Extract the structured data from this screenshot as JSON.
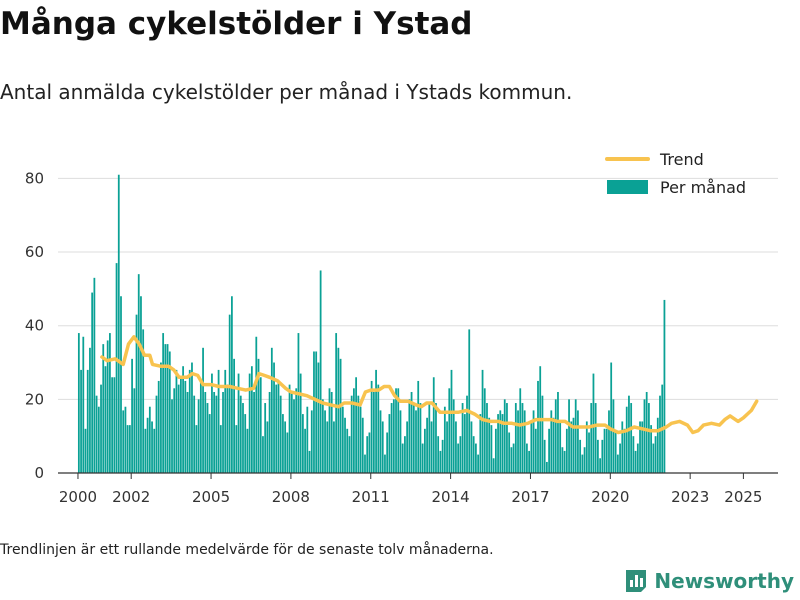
{
  "header": {
    "title": "Många cykelstölder i Ystad",
    "subtitle": "Antal anmälda cykelstölder per månad i Ystads kommun."
  },
  "footer": {
    "note": "Trendlinjen är ett rullande medelvärde för de senaste tolv månaderna.",
    "brand": "Newsworthy"
  },
  "colors": {
    "bars": "#0aa195",
    "trend": "#f8c34f",
    "grid": "#dddddd",
    "axis": "#333333",
    "brand": "#2f8f7a"
  },
  "icons": {
    "brand": "bar-chart-icon"
  },
  "chart_data": {
    "type": "bar",
    "x_axis": {
      "min": 1999.25,
      "max": 2026.3,
      "ticks": [
        2000,
        2002,
        2005,
        2008,
        2011,
        2014,
        2017,
        2020,
        2023,
        2025
      ]
    },
    "y_axis": {
      "min": 0,
      "max": 85,
      "ticks": [
        0,
        20,
        40,
        60,
        80
      ]
    },
    "grid": true,
    "legend": {
      "position": "top-right"
    },
    "series": [
      {
        "name": "Per månad",
        "kind": "bar",
        "start": "2000-01",
        "values": [
          38,
          28,
          37,
          12,
          28,
          34,
          49,
          53,
          21,
          18,
          24,
          35,
          29,
          36,
          38,
          26,
          26,
          57,
          81,
          48,
          17,
          18,
          13,
          13,
          31,
          23,
          43,
          54,
          48,
          39,
          12,
          15,
          18,
          14,
          12,
          21,
          25,
          30,
          38,
          35,
          35,
          33,
          20,
          23,
          28,
          24,
          26,
          29,
          25,
          22,
          28,
          30,
          21,
          13,
          20,
          25,
          34,
          22,
          19,
          16,
          27,
          22,
          21,
          28,
          13,
          22,
          28,
          24,
          43,
          48,
          31,
          13,
          27,
          21,
          19,
          16,
          12,
          27,
          29,
          22,
          37,
          31,
          26,
          10,
          19,
          14,
          22,
          34,
          30,
          24,
          25,
          21,
          16,
          14,
          11,
          24,
          22,
          20,
          23,
          38,
          27,
          16,
          12,
          18,
          6,
          17,
          33,
          33,
          30,
          55,
          20,
          17,
          14,
          23,
          22,
          14,
          38,
          34,
          31,
          18,
          15,
          12,
          10,
          21,
          23,
          26,
          21,
          18,
          15,
          5,
          10,
          11,
          25,
          22,
          28,
          24,
          17,
          14,
          5,
          11,
          16,
          19,
          20,
          23,
          23,
          17,
          8,
          10,
          14,
          20,
          22,
          19,
          17,
          25,
          19,
          8,
          12,
          15,
          19,
          14,
          26,
          19,
          10,
          6,
          9,
          18,
          14,
          23,
          28,
          20,
          14,
          8,
          10,
          19,
          16,
          21,
          39,
          14,
          10,
          8,
          5,
          16,
          28,
          23,
          19,
          15,
          13,
          4,
          12,
          16,
          17,
          16,
          20,
          19,
          11,
          7,
          8,
          19,
          17,
          23,
          19,
          17,
          8,
          6,
          14,
          17,
          12,
          25,
          29,
          21,
          9,
          3,
          12,
          17,
          15,
          20,
          22,
          14,
          7,
          6,
          12,
          20,
          14,
          15,
          20,
          17,
          9,
          5,
          7,
          14,
          11,
          19,
          27,
          19,
          9,
          4,
          9,
          12,
          12,
          17,
          30,
          20,
          11,
          5,
          8,
          14,
          12,
          18,
          21,
          19,
          10,
          6,
          8,
          14,
          14,
          20,
          22,
          19,
          13,
          8,
          10,
          15,
          21,
          24,
          47
        ]
      },
      {
        "name": "Trend",
        "kind": "line",
        "points": [
          [
            2000.9,
            31.5
          ],
          [
            2001.1,
            30.5
          ],
          [
            2001.4,
            31
          ],
          [
            2001.7,
            29.5
          ],
          [
            2001.9,
            35
          ],
          [
            2002.1,
            37
          ],
          [
            2002.3,
            35
          ],
          [
            2002.5,
            32
          ],
          [
            2002.7,
            32
          ],
          [
            2002.8,
            29.5
          ],
          [
            2003.1,
            29
          ],
          [
            2003.4,
            29
          ],
          [
            2003.6,
            28
          ],
          [
            2003.8,
            26
          ],
          [
            2004.1,
            26
          ],
          [
            2004.3,
            27
          ],
          [
            2004.5,
            26.5
          ],
          [
            2004.7,
            24
          ],
          [
            2005.0,
            24
          ],
          [
            2005.3,
            23.5
          ],
          [
            2005.7,
            23.5
          ],
          [
            2006.0,
            23
          ],
          [
            2006.3,
            22.5
          ],
          [
            2006.6,
            23
          ],
          [
            2006.8,
            27
          ],
          [
            2007.0,
            26.5
          ],
          [
            2007.2,
            26
          ],
          [
            2007.5,
            25
          ],
          [
            2007.8,
            23
          ],
          [
            2008.0,
            22
          ],
          [
            2008.3,
            21.5
          ],
          [
            2008.6,
            21
          ],
          [
            2008.9,
            20
          ],
          [
            2009.2,
            19
          ],
          [
            2009.5,
            18.5
          ],
          [
            2009.8,
            18
          ],
          [
            2010.0,
            19
          ],
          [
            2010.3,
            19
          ],
          [
            2010.6,
            18.5
          ],
          [
            2010.8,
            22
          ],
          [
            2011.0,
            22.5
          ],
          [
            2011.3,
            22.5
          ],
          [
            2011.5,
            23.5
          ],
          [
            2011.7,
            23.5
          ],
          [
            2011.9,
            21
          ],
          [
            2012.1,
            19.5
          ],
          [
            2012.4,
            19.5
          ],
          [
            2012.7,
            18.5
          ],
          [
            2012.9,
            18
          ],
          [
            2013.1,
            19
          ],
          [
            2013.3,
            19
          ],
          [
            2013.6,
            16.5
          ],
          [
            2014.0,
            16.5
          ],
          [
            2014.3,
            16.5
          ],
          [
            2014.6,
            17
          ],
          [
            2014.9,
            16
          ],
          [
            2015.2,
            14.5
          ],
          [
            2015.5,
            14
          ],
          [
            2015.8,
            14
          ],
          [
            2016.0,
            13.5
          ],
          [
            2016.3,
            13.5
          ],
          [
            2016.6,
            13
          ],
          [
            2016.9,
            13.5
          ],
          [
            2017.2,
            14.5
          ],
          [
            2017.5,
            14.5
          ],
          [
            2017.8,
            14.5
          ],
          [
            2018.0,
            14
          ],
          [
            2018.3,
            14
          ],
          [
            2018.6,
            12.5
          ],
          [
            2018.9,
            12.5
          ],
          [
            2019.2,
            12.5
          ],
          [
            2019.5,
            13
          ],
          [
            2019.8,
            13
          ],
          [
            2020.0,
            12
          ],
          [
            2020.3,
            11
          ],
          [
            2020.6,
            11.5
          ],
          [
            2020.9,
            12.5
          ],
          [
            2021.2,
            12
          ],
          [
            2021.5,
            11.5
          ],
          [
            2021.8,
            11.5
          ],
          [
            2022.1,
            12.5
          ],
          [
            2022.3,
            13.5
          ],
          [
            2022.6,
            14
          ],
          [
            2022.9,
            13
          ],
          [
            2023.1,
            11
          ],
          [
            2023.3,
            11.5
          ],
          [
            2023.5,
            13
          ],
          [
            2023.8,
            13.5
          ],
          [
            2024.1,
            13
          ],
          [
            2024.3,
            14.5
          ],
          [
            2024.5,
            15.5
          ],
          [
            2024.8,
            14
          ],
          [
            2025.0,
            15
          ],
          [
            2025.3,
            17
          ],
          [
            2025.5,
            19.5
          ]
        ]
      }
    ]
  }
}
